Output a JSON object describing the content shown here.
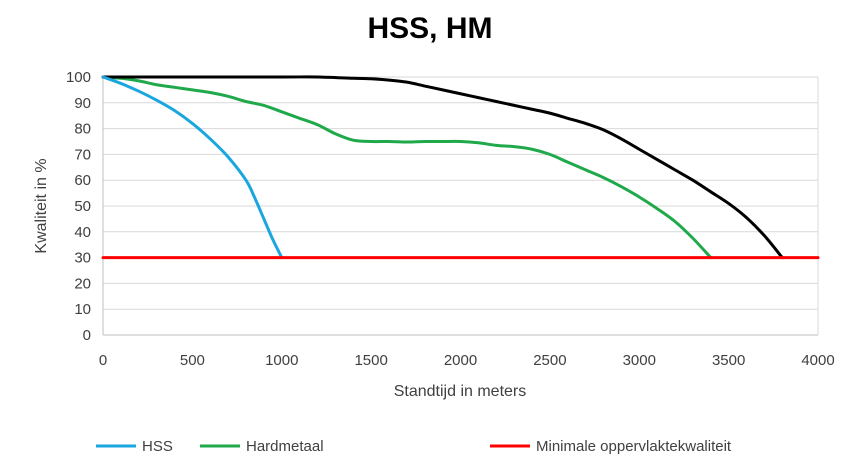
{
  "chart_data": {
    "type": "line",
    "title": "HSS, HM",
    "xlabel": "Standtijd in meters",
    "ylabel": "Kwaliteit in %",
    "xlim": [
      0,
      4000
    ],
    "ylim": [
      0,
      100
    ],
    "xticks": [
      "0",
      "500",
      "1000",
      "1500",
      "2000",
      "2500",
      "3000",
      "3500",
      "4000"
    ],
    "yticks": [
      "0",
      "10",
      "20",
      "30",
      "40",
      "50",
      "60",
      "70",
      "80",
      "90",
      "100"
    ],
    "grid": "horizontal",
    "legend_position": "bottom",
    "series": [
      {
        "name": "HSS",
        "color": "#1AA7E0",
        "x": [
          0,
          100,
          200,
          300,
          400,
          500,
          600,
          700,
          800,
          850,
          900,
          950,
          1000
        ],
        "y": [
          100,
          97.5,
          94.5,
          91,
          87,
          82,
          76,
          69,
          60,
          53,
          45,
          37,
          30
        ]
      },
      {
        "name": "Hardmetaal",
        "color": "#1FA94B",
        "x": [
          0,
          100,
          200,
          300,
          400,
          500,
          600,
          700,
          800,
          900,
          1000,
          1100,
          1200,
          1300,
          1400,
          1500,
          1600,
          1700,
          1800,
          1900,
          2000,
          2100,
          2200,
          2300,
          2400,
          2500,
          2600,
          2700,
          2800,
          2900,
          3000,
          3100,
          3200,
          3300,
          3400
        ],
        "y": [
          100,
          99.5,
          98.5,
          97,
          96,
          95,
          94,
          92.5,
          90.5,
          89,
          86.5,
          84,
          81.5,
          78,
          75.5,
          75,
          75,
          74.8,
          75,
          75,
          75,
          74.5,
          73.5,
          73,
          72,
          70,
          67,
          64,
          61,
          57.5,
          53.5,
          49,
          44,
          37.5,
          30
        ]
      },
      {
        "name": "",
        "color": "#000000",
        "x": [
          0,
          500,
          1000,
          1200,
          1400,
          1500,
          1600,
          1700,
          1800,
          1900,
          2000,
          2100,
          2200,
          2300,
          2400,
          2500,
          2600,
          2700,
          2800,
          2900,
          3000,
          3100,
          3200,
          3300,
          3400,
          3500,
          3600,
          3700,
          3800
        ],
        "y": [
          100,
          100,
          100,
          100,
          99.5,
          99.3,
          98.8,
          98,
          96.5,
          95,
          93.5,
          92,
          90.5,
          89,
          87.5,
          86,
          84,
          82,
          79.5,
          76,
          72,
          68,
          64,
          60,
          55.5,
          51,
          45.5,
          38.5,
          30
        ]
      },
      {
        "name": "Minimale oppervlaktekwaliteit",
        "color": "#FF0000",
        "x": [
          0,
          4000
        ],
        "y": [
          30,
          30
        ]
      }
    ]
  }
}
